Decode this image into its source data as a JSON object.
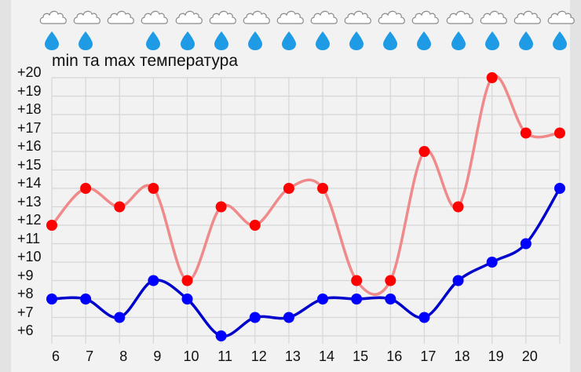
{
  "title": "min та max температура",
  "colors": {
    "background": "#f2f2f2",
    "grid": "#d6d6d6",
    "max_line": "#f08a8a",
    "max_point": "#ff0000",
    "min_line": "#0000cc",
    "min_point": "#0000ff",
    "drop": "#1f9be6",
    "cloud_stroke": "#8a8a8a"
  },
  "weather": [
    {
      "cloud": true,
      "rain": true
    },
    {
      "cloud": true,
      "rain": true
    },
    {
      "cloud": true,
      "rain": false
    },
    {
      "cloud": true,
      "rain": true
    },
    {
      "cloud": true,
      "rain": true
    },
    {
      "cloud": true,
      "rain": true
    },
    {
      "cloud": true,
      "rain": true
    },
    {
      "cloud": true,
      "rain": true
    },
    {
      "cloud": true,
      "rain": true
    },
    {
      "cloud": true,
      "rain": true
    },
    {
      "cloud": true,
      "rain": true
    },
    {
      "cloud": true,
      "rain": true
    },
    {
      "cloud": true,
      "rain": true
    },
    {
      "cloud": true,
      "rain": true
    },
    {
      "cloud": true,
      "rain": true
    },
    {
      "cloud": true,
      "rain": true
    }
  ],
  "chart_data": {
    "type": "line",
    "title": "min та max температура",
    "xlabel": "",
    "ylabel": "",
    "categories": [
      "6",
      "7",
      "8",
      "9",
      "10",
      "11",
      "12",
      "13",
      "14",
      "15",
      "16",
      "17",
      "18",
      "19",
      "20",
      ""
    ],
    "series": [
      {
        "name": "max",
        "values": [
          12,
          14,
          13,
          14,
          9,
          13,
          12,
          14,
          14,
          9,
          9,
          16,
          13,
          20,
          17,
          17
        ]
      },
      {
        "name": "min",
        "values": [
          8,
          8,
          7,
          9,
          8,
          6,
          7,
          7,
          8,
          8,
          8,
          7,
          9,
          10,
          11,
          14
        ]
      }
    ],
    "y_ticks": [
      "+20",
      "+19",
      "+18",
      "+17",
      "+16",
      "+15",
      "+14",
      "+13",
      "+12",
      "+11",
      "+10",
      "+9",
      "+8",
      "+7",
      "+6"
    ],
    "ylim": [
      6,
      20
    ],
    "grid": true,
    "smooth": true
  }
}
